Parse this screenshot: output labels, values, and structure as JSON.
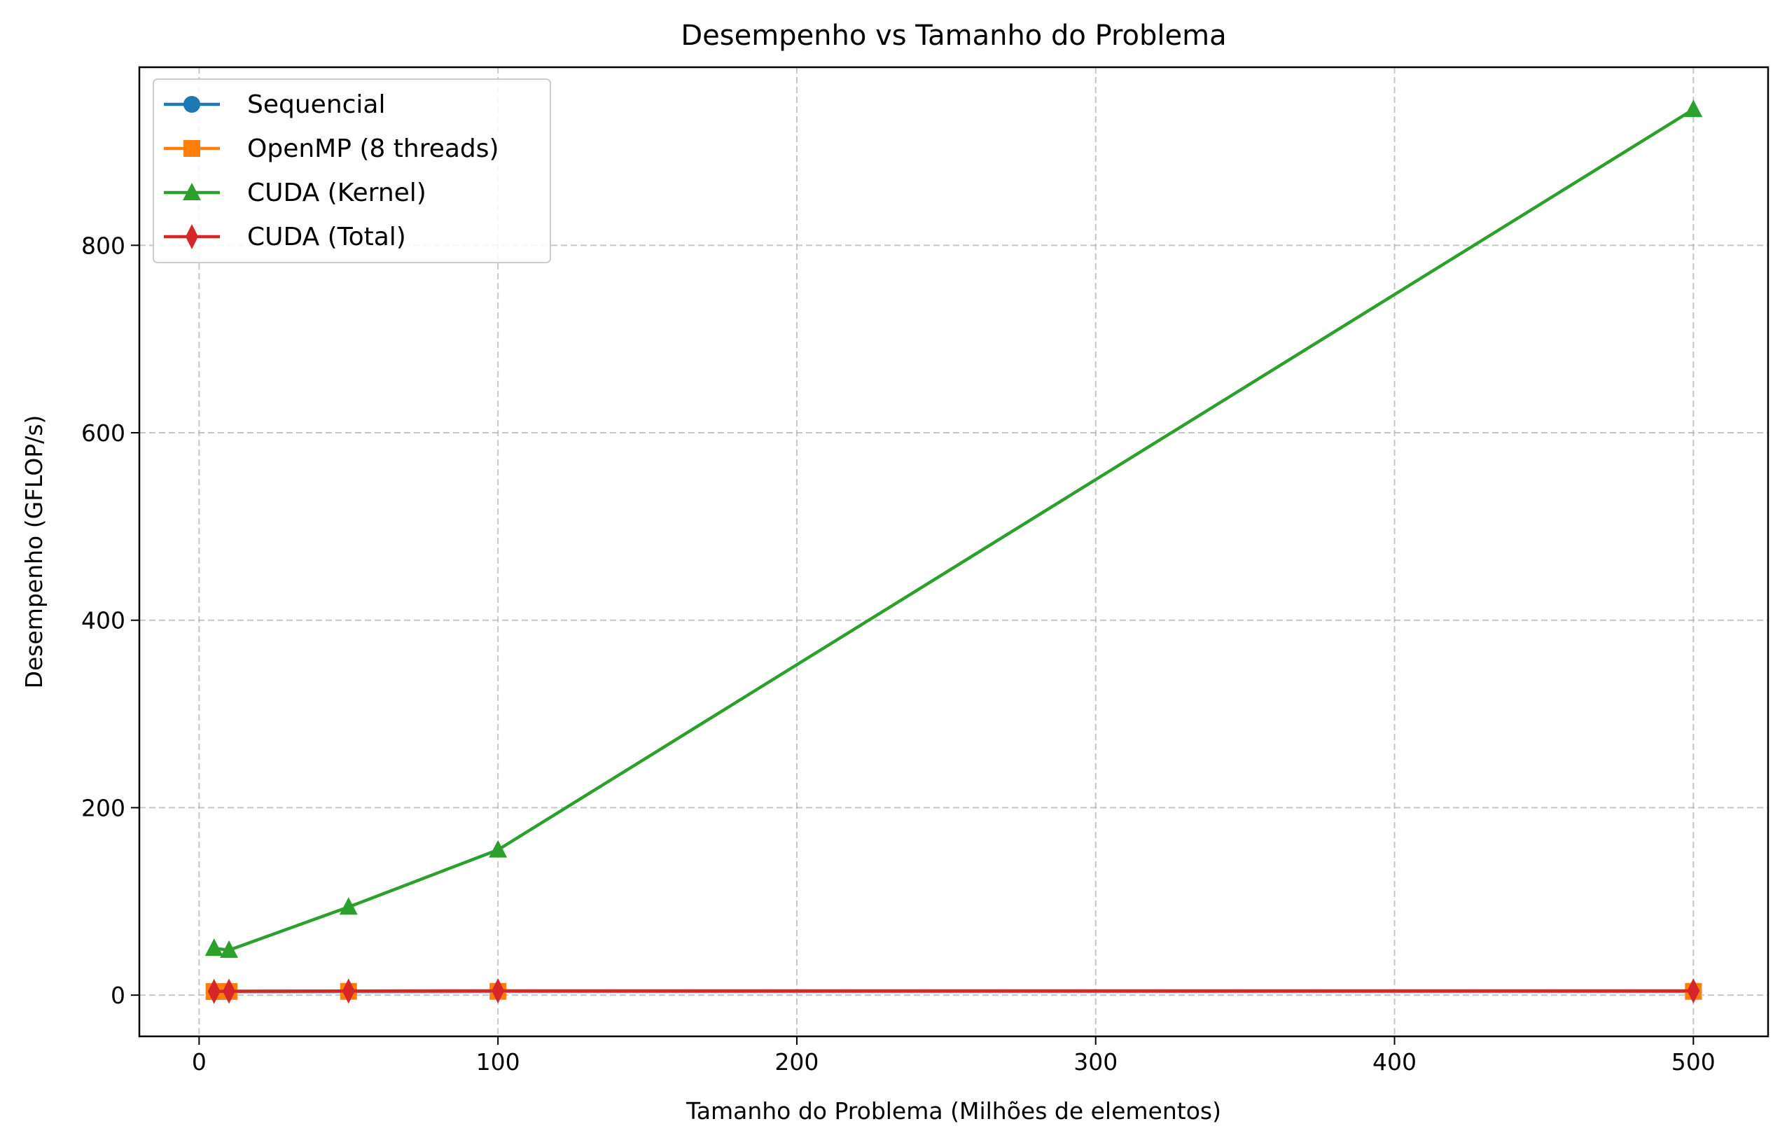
{
  "chart_data": {
    "type": "line",
    "title": "Desempenho vs Tamanho do Problema",
    "xlabel": "Tamanho do Problema (Milhões de elementos)",
    "ylabel": "Desempenho (GFLOP/s)",
    "xlim": [
      -20,
      525
    ],
    "ylim": [
      -44,
      990
    ],
    "xticks": [
      0,
      100,
      200,
      300,
      400,
      500
    ],
    "yticks": [
      0,
      200,
      400,
      600,
      800
    ],
    "grid": true,
    "legend_position": "upper-left",
    "x": [
      5,
      10,
      50,
      100,
      500
    ],
    "series": [
      {
        "name": "Sequencial",
        "marker": "circle",
        "color": "#1f77b4",
        "values": [
          3.5,
          3.6,
          3.7,
          3.8,
          3.8
        ]
      },
      {
        "name": "OpenMP (8 threads)",
        "marker": "square",
        "color": "#ff7f0e",
        "values": [
          3.8,
          3.9,
          4.0,
          4.0,
          4.0
        ]
      },
      {
        "name": "CUDA (Kernel)",
        "marker": "triangle",
        "color": "#2ca02c",
        "values": [
          50,
          48,
          94,
          155,
          945
        ]
      },
      {
        "name": "CUDA (Total)",
        "marker": "diamond",
        "color": "#d62728",
        "values": [
          4.0,
          4.2,
          4.4,
          4.6,
          4.6
        ]
      }
    ]
  }
}
